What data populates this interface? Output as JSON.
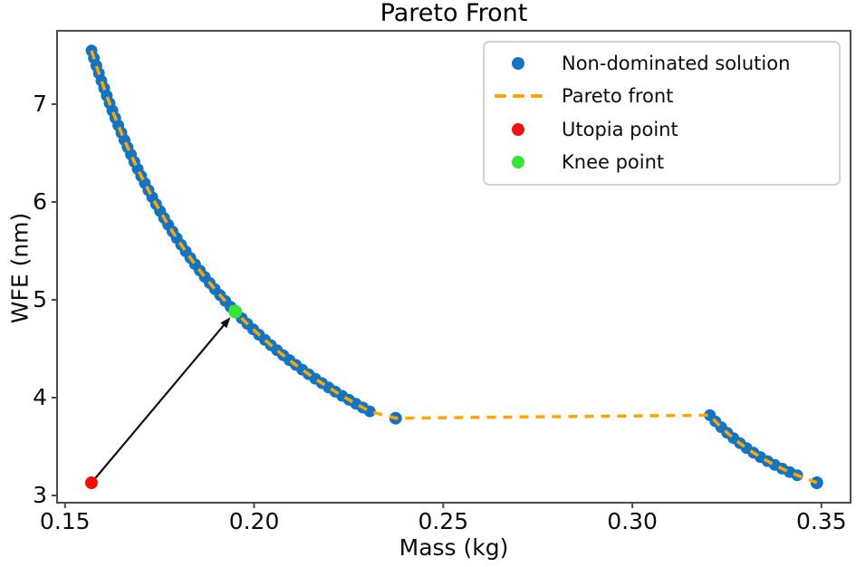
{
  "chart_data": {
    "type": "scatter",
    "title": "Pareto Front",
    "xlabel": "Mass (kg)",
    "ylabel": "WFE (nm)",
    "xlim": [
      0.1479,
      0.3577
    ],
    "ylim": [
      2.926,
      7.75
    ],
    "x_ticks": [
      0.15,
      0.2,
      0.25,
      0.3,
      0.35
    ],
    "x_tick_labels": [
      "0.15",
      "0.20",
      "0.25",
      "0.30",
      "0.35"
    ],
    "y_ticks": [
      3,
      4,
      5,
      6,
      7
    ],
    "y_tick_labels": [
      "3",
      "4",
      "5",
      "6",
      "7"
    ],
    "grid": false,
    "legend_position": "upper right",
    "series": [
      {
        "name": "Non-dominated solution",
        "type": "scatter",
        "color": "#1474c4",
        "marker_radius": 6.5,
        "bands": [
          {
            "comment": "dense convex band, WFE = c + k/(mass - m0)",
            "m_range": [
              0.157,
              0.2306
            ],
            "c": 1.319,
            "k": 0.3158,
            "m0": 0.1063,
            "start_point": [
              0.157,
              7.55
            ],
            "end_point": [
              0.2306,
              3.86
            ],
            "count": 60
          },
          {
            "comment": "second dense band, WFE = c + k/(mass - m0)",
            "m_range": [
              0.3205,
              0.3436
            ],
            "c": 2.2815,
            "k": 0.05354,
            "m0": 0.2857,
            "start_point": [
              0.3205,
              3.82
            ],
            "end_point": [
              0.3436,
              3.21
            ],
            "count": 14
          }
        ],
        "isolated_points": [
          [
            0.2374,
            3.79
          ],
          [
            0.3488,
            3.13
          ]
        ]
      },
      {
        "name": "Pareto front",
        "type": "dashed-line",
        "color": "#ffa500",
        "path": "follows band 1, isolated point (0.2374, 3.79), band 2, isolated point (0.3488, 3.13)"
      },
      {
        "name": "Utopia point",
        "type": "scatter",
        "color": "#f2100c",
        "points": [
          [
            0.157,
            3.13
          ]
        ]
      },
      {
        "name": "Knee point",
        "type": "scatter",
        "color": "#35e435",
        "points": [
          [
            0.195,
            4.88
          ]
        ]
      }
    ],
    "annotations": [
      {
        "type": "arrow",
        "from": [
          0.157,
          3.13
        ],
        "to": [
          0.195,
          4.88
        ],
        "color": "#111111"
      }
    ]
  },
  "legend": {
    "items": [
      {
        "label": "Non-dominated solution",
        "marker": "dot",
        "color": "#1474c4"
      },
      {
        "label": "Pareto front",
        "marker": "dashes",
        "color": "#ffa500"
      },
      {
        "label": "Utopia point",
        "marker": "dot",
        "color": "#f2100c"
      },
      {
        "label": "Knee point",
        "marker": "dot",
        "color": "#35e435"
      }
    ]
  }
}
